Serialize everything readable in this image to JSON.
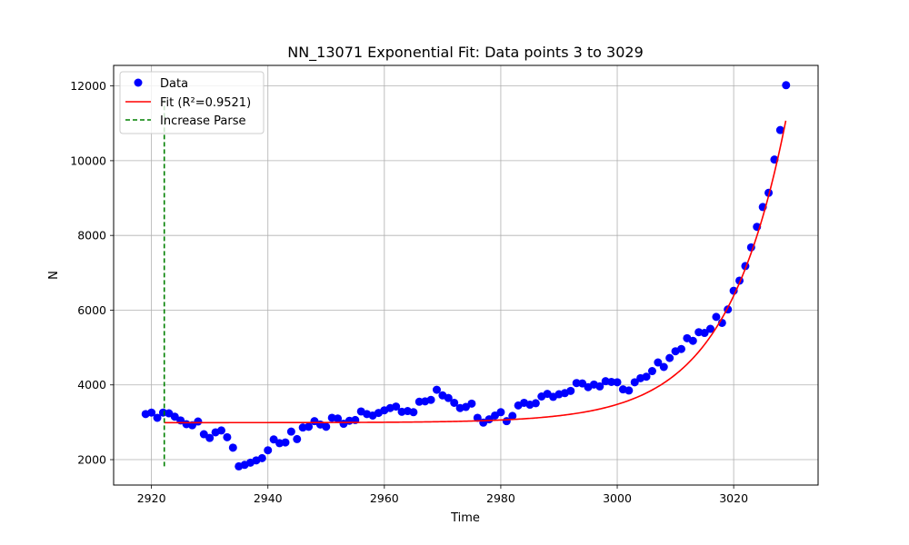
{
  "chart_data": {
    "type": "scatter",
    "title": "NN_13071 Exponential Fit: Data points 3 to 3029",
    "xlabel": "Time",
    "ylabel": "N",
    "xlim": [
      2913.5,
      3034.5
    ],
    "ylim": [
      1320,
      12550
    ],
    "xticks": [
      2920,
      2940,
      2960,
      2980,
      3000,
      3020
    ],
    "yticks": [
      2000,
      4000,
      6000,
      8000,
      10000,
      12000
    ],
    "grid": true,
    "legend_position": "top-left",
    "colors": {
      "data": "#0000ff",
      "fit": "#ff0000",
      "increase": "#008000"
    },
    "series": [
      {
        "name": "Data",
        "kind": "scatter",
        "x": [
          2919,
          2920,
          2921,
          2922,
          2923,
          2924,
          2925,
          2926,
          2927,
          2928,
          2929,
          2930,
          2931,
          2932,
          2933,
          2934,
          2935,
          2936,
          2937,
          2938,
          2939,
          2940,
          2941,
          2942,
          2943,
          2944,
          2945,
          2946,
          2947,
          2948,
          2949,
          2950,
          2951,
          2952,
          2953,
          2954,
          2955,
          2956,
          2957,
          2958,
          2959,
          2960,
          2961,
          2962,
          2963,
          2964,
          2965,
          2966,
          2967,
          2968,
          2969,
          2970,
          2971,
          2972,
          2973,
          2974,
          2975,
          2976,
          2977,
          2978,
          2979,
          2980,
          2981,
          2982,
          2983,
          2984,
          2985,
          2986,
          2987,
          2988,
          2989,
          2990,
          2991,
          2992,
          2993,
          2994,
          2995,
          2996,
          2997,
          2998,
          2999,
          3000,
          3001,
          3002,
          3003,
          3004,
          3005,
          3006,
          3007,
          3008,
          3009,
          3010,
          3011,
          3012,
          3013,
          3014,
          3015,
          3016,
          3017,
          3018,
          3019,
          3020,
          3021,
          3022,
          3023,
          3024,
          3025,
          3026,
          3027,
          3028,
          3029
        ],
        "y": [
          3220,
          3260,
          3120,
          3260,
          3240,
          3150,
          3050,
          2950,
          2920,
          3020,
          2680,
          2580,
          2730,
          2780,
          2600,
          2320,
          1820,
          1860,
          1920,
          1980,
          2040,
          2250,
          2540,
          2440,
          2460,
          2750,
          2550,
          2860,
          2880,
          3030,
          2940,
          2880,
          3120,
          3100,
          2960,
          3040,
          3060,
          3290,
          3220,
          3180,
          3250,
          3320,
          3380,
          3420,
          3280,
          3300,
          3270,
          3550,
          3560,
          3600,
          3870,
          3720,
          3650,
          3520,
          3380,
          3410,
          3500,
          3120,
          2990,
          3080,
          3180,
          3270,
          3030,
          3170,
          3450,
          3520,
          3470,
          3510,
          3690,
          3760,
          3680,
          3750,
          3780,
          3840,
          4050,
          4040,
          3940,
          4010,
          3960,
          4100,
          4080,
          4070,
          3880,
          3850,
          4070,
          4180,
          4220,
          4370,
          4600,
          4480,
          4720,
          4900,
          4960,
          5250,
          5180,
          5410,
          5390,
          5500,
          5820,
          5660,
          6020,
          6520,
          6790,
          7180,
          7680,
          8230,
          8760,
          9140,
          10030,
          10820,
          12020
        ]
      },
      {
        "name": "Fit (R²=0.9521)",
        "kind": "line",
        "model": {
          "a": 2990,
          "b": 0.0969,
          "t_end": 3029,
          "c": 8120
        }
      },
      {
        "name": "Increase Parse",
        "kind": "vline",
        "x": 2922.2,
        "y_range": [
          1820,
          11620
        ]
      }
    ]
  }
}
